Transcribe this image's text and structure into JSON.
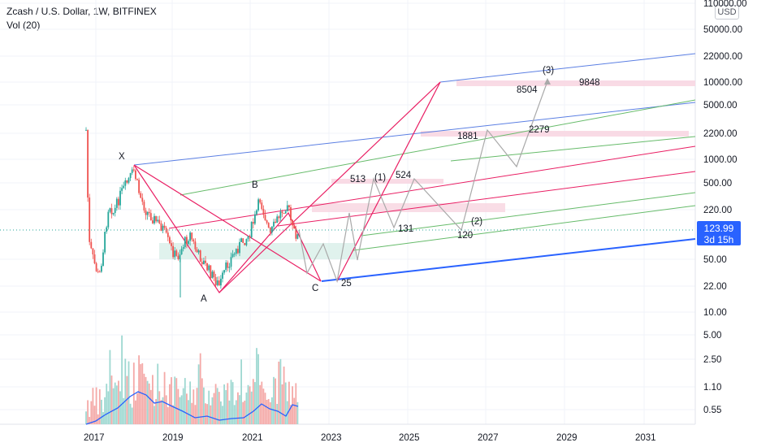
{
  "legend": {
    "symbol": "Zcash / U.S. Dollar, 1W, BITFINEX",
    "indicator": "Vol (20)"
  },
  "currency_badge": "USD",
  "last_price": {
    "value": "123.99",
    "countdown": "3d 15h"
  },
  "price_axis": [
    "110000.00",
    "50000.00",
    "22000.00",
    "10000.00",
    "5000.00",
    "2200.00",
    "1000.00",
    "500.00",
    "220.00",
    "50.00",
    "22.00",
    "10.00",
    "5.00",
    "2.50",
    "1.10",
    "0.55"
  ],
  "time_axis": [
    "2017",
    "2019",
    "2021",
    "2023",
    "2025",
    "2027",
    "2029",
    "2031"
  ],
  "wave_labels": {
    "x": "X",
    "a": "A",
    "b": "B",
    "c": "C",
    "w1": "(1)",
    "w2": "(2)",
    "w3": "(3)"
  },
  "target_labels": [
    "513",
    "524",
    "131",
    "120",
    "25",
    "1881",
    "2279",
    "8504",
    "9848"
  ],
  "colors": {
    "up": "#26a69a",
    "down": "#ef5350",
    "blue_line": "#2962ff",
    "green_line": "#4caf50",
    "red_line": "#e91e63",
    "gray_path": "#9e9e9e",
    "price_tag": "#2962ff"
  },
  "chart_data": {
    "type": "candlestick",
    "scale": "log",
    "ylim": [
      10,
      110000
    ],
    "x": [
      "2017",
      "2019",
      "2021",
      "2023",
      "2025",
      "2027",
      "2029",
      "2031"
    ],
    "series": [
      {
        "name": "Zcash / U.S. Dollar, 1W, BITFINEX",
        "last": 123.99
      }
    ]
  }
}
